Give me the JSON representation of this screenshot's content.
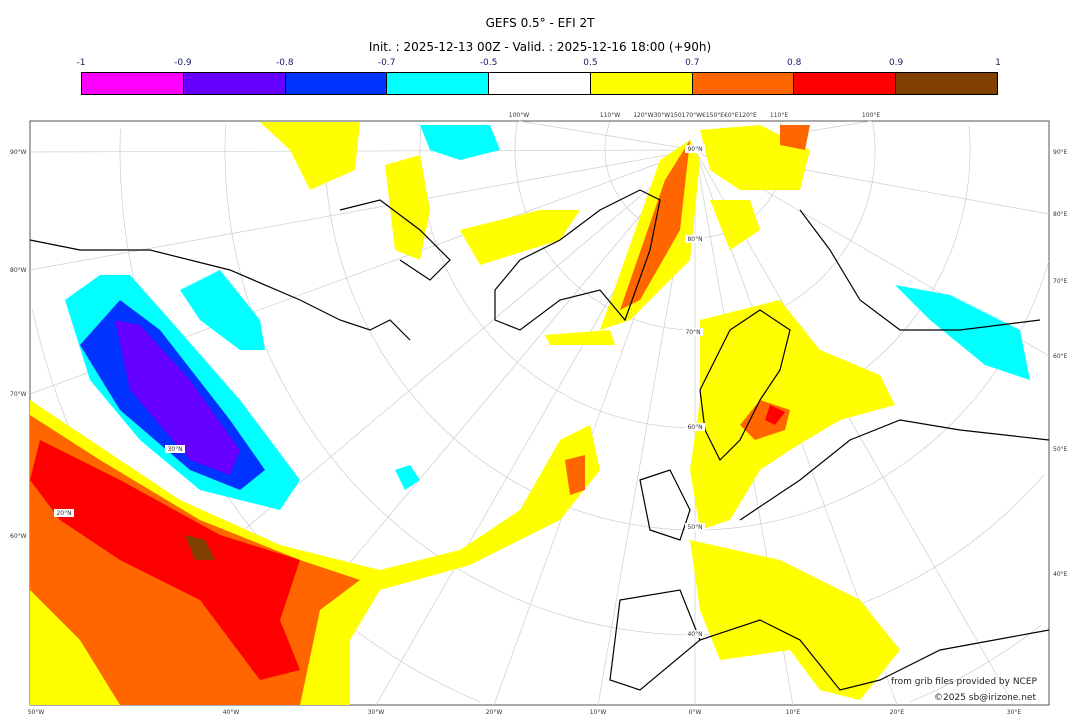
{
  "title": "GEFS 0.5° - EFI 2T",
  "subtitle": "Init. : 2025-12-13 00Z - Valid. : 2025-12-16 18:00 (+90h)",
  "colorbar": {
    "ticks": [
      "-1",
      "-0.9",
      "-0.8",
      "-0.7",
      "-0.5",
      "0.5",
      "0.7",
      "0.8",
      "0.9",
      "1"
    ],
    "colors": [
      "#ff00ff",
      "#6600ff",
      "#0033ff",
      "#00ffff",
      "#ffffff",
      "#ffff00",
      "#ff6600",
      "#ff0000",
      "#804000"
    ]
  },
  "axes": {
    "left": [
      "90°W",
      "80°W",
      "70°W",
      "60°W"
    ],
    "bottom": [
      "50°W",
      "40°W",
      "30°W",
      "20°W",
      "10°W",
      "0°W",
      "10°E",
      "20°E",
      "30°E"
    ],
    "right": [
      "90°E",
      "80°E",
      "70°E",
      "60°E",
      "50°E",
      "40°E"
    ],
    "top": [
      "100°W",
      "110°W",
      "120°W30°W150170°W€150°E€0°E120°E",
      "110°E",
      "100°E"
    ],
    "lat_labels": [
      "90°N",
      "80°N",
      "70°N",
      "60°N",
      "50°N",
      "40°N",
      "30°N",
      "20°N"
    ]
  },
  "credits": {
    "line1": "from grib files provided by NCEP",
    "line2": "©2025 sb@irizone.net"
  }
}
